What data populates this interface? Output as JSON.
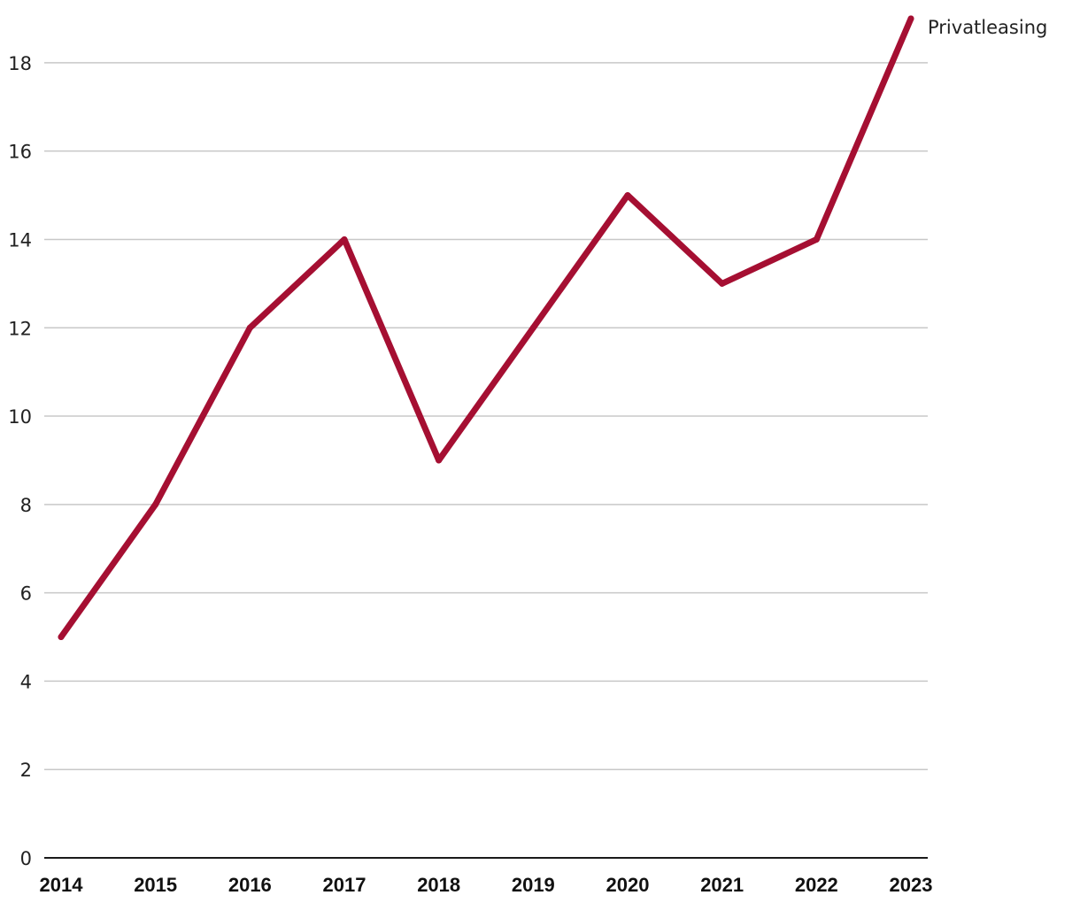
{
  "chart_data": {
    "type": "line",
    "title": "",
    "xlabel": "",
    "ylabel": "",
    "x": [
      "2014",
      "2015",
      "2016",
      "2017",
      "2018",
      "2019",
      "2020",
      "2021",
      "2022",
      "2023"
    ],
    "ylim": [
      0,
      19
    ],
    "yticks": [
      0,
      2,
      4,
      6,
      8,
      10,
      12,
      14,
      16,
      18
    ],
    "grid": true,
    "legend": "inline-label-at-line-end",
    "series": [
      {
        "name": "Privatleasing",
        "color": "#a50f32",
        "values": [
          5,
          8,
          12,
          14,
          9,
          12,
          15,
          13,
          14,
          19
        ]
      }
    ]
  }
}
